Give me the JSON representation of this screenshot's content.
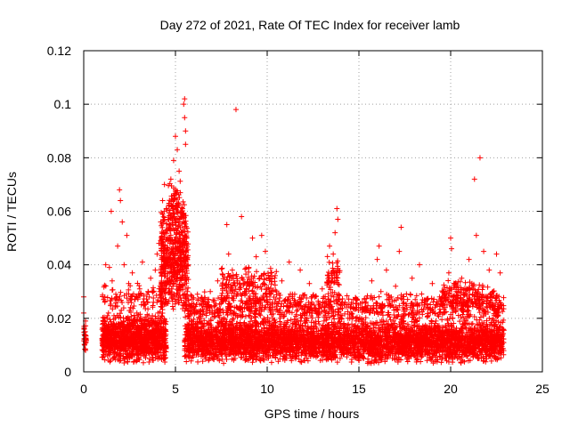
{
  "chart_data": {
    "type": "scatter",
    "title": "Day 272 of 2021, Rate Of TEC Index for receiver lamb",
    "xlabel": "GPS time / hours",
    "ylabel": "ROTI / TECUs",
    "xlim": [
      0,
      25
    ],
    "ylim": [
      0,
      0.12
    ],
    "xticks": [
      0,
      5,
      10,
      15,
      20,
      25
    ],
    "xtick_labels": [
      "0",
      "5",
      "10",
      "15",
      "20",
      "25"
    ],
    "yticks": [
      0,
      0.02,
      0.04,
      0.06,
      0.08,
      0.1,
      0.12
    ],
    "ytick_labels": [
      "0",
      "0.02",
      "0.04",
      "0.06",
      "0.08",
      "0.1",
      "0.12"
    ],
    "grid": true,
    "marker": "+",
    "series": [
      {
        "name": "ROTI",
        "color": "#ff0000",
        "points": [
          [
            0.0,
            0.028
          ],
          [
            0.0,
            0.022
          ],
          [
            0.02,
            0.017
          ],
          [
            0.03,
            0.014
          ],
          [
            0.05,
            0.01
          ],
          [
            0.08,
            0.015
          ],
          [
            0.1,
            0.008
          ],
          [
            0.1,
            0.019
          ],
          [
            0.12,
            0.012
          ],
          [
            1.0,
            0.012
          ],
          [
            1.05,
            0.019
          ],
          [
            1.1,
            0.008
          ],
          [
            1.15,
            0.026
          ],
          [
            1.2,
            0.04
          ],
          [
            1.25,
            0.014
          ],
          [
            1.3,
            0.006
          ],
          [
            1.35,
            0.022
          ],
          [
            1.4,
            0.039
          ],
          [
            1.45,
            0.017
          ],
          [
            1.5,
            0.06
          ],
          [
            1.5,
            0.011
          ],
          [
            1.55,
            0.034
          ],
          [
            1.6,
            0.005
          ],
          [
            1.65,
            0.021
          ],
          [
            1.7,
            0.014
          ],
          [
            1.75,
            0.029
          ],
          [
            1.8,
            0.009
          ],
          [
            1.85,
            0.047
          ],
          [
            1.9,
            0.016
          ],
          [
            1.95,
            0.068
          ],
          [
            2.0,
            0.064
          ],
          [
            2.0,
            0.011
          ],
          [
            2.05,
            0.023
          ],
          [
            2.1,
            0.056
          ],
          [
            2.15,
            0.013
          ],
          [
            2.2,
            0.04
          ],
          [
            2.25,
            0.008
          ],
          [
            2.3,
            0.02
          ],
          [
            2.35,
            0.051
          ],
          [
            2.4,
            0.015
          ],
          [
            2.45,
            0.033
          ],
          [
            2.5,
            0.006
          ],
          [
            2.55,
            0.024
          ],
          [
            2.6,
            0.012
          ],
          [
            2.65,
            0.037
          ],
          [
            2.7,
            0.018
          ],
          [
            2.75,
            0.009
          ],
          [
            2.8,
            0.027
          ],
          [
            2.85,
            0.014
          ],
          [
            2.9,
            0.022
          ],
          [
            2.95,
            0.007
          ],
          [
            3.0,
            0.016
          ],
          [
            3.05,
            0.031
          ],
          [
            3.1,
            0.011
          ],
          [
            3.15,
            0.02
          ],
          [
            3.2,
            0.041
          ],
          [
            3.25,
            0.013
          ],
          [
            3.3,
            0.025
          ],
          [
            3.35,
            0.008
          ],
          [
            3.4,
            0.017
          ],
          [
            3.45,
            0.029
          ],
          [
            3.5,
            0.01
          ],
          [
            3.55,
            0.021
          ],
          [
            3.6,
            0.014
          ],
          [
            3.65,
            0.035
          ],
          [
            3.7,
            0.007
          ],
          [
            3.75,
            0.019
          ],
          [
            3.8,
            0.026
          ],
          [
            3.85,
            0.012
          ],
          [
            3.9,
            0.038
          ],
          [
            3.95,
            0.016
          ],
          [
            4.0,
            0.044
          ],
          [
            4.05,
            0.022
          ],
          [
            4.1,
            0.048
          ],
          [
            4.15,
            0.03
          ],
          [
            4.2,
            0.056
          ],
          [
            4.25,
            0.036
          ],
          [
            4.3,
            0.064
          ],
          [
            4.35,
            0.045
          ],
          [
            4.4,
            0.07
          ],
          [
            4.45,
            0.052
          ],
          [
            4.5,
            0.061
          ],
          [
            4.55,
            0.04
          ],
          [
            4.6,
            0.057
          ],
          [
            4.65,
            0.031
          ],
          [
            4.7,
            0.048
          ],
          [
            4.75,
            0.072
          ],
          [
            4.8,
            0.062
          ],
          [
            4.85,
            0.045
          ],
          [
            4.9,
            0.079
          ],
          [
            4.95,
            0.058
          ],
          [
            5.0,
            0.088
          ],
          [
            5.0,
            0.068
          ],
          [
            5.05,
            0.052
          ],
          [
            5.1,
            0.083
          ],
          [
            5.1,
            0.04
          ],
          [
            5.15,
            0.062
          ],
          [
            5.2,
            0.075
          ],
          [
            5.25,
            0.047
          ],
          [
            5.3,
            0.058
          ],
          [
            5.35,
            0.035
          ],
          [
            5.4,
            0.049
          ],
          [
            5.45,
            0.1
          ],
          [
            5.5,
            0.102
          ],
          [
            5.5,
            0.095
          ],
          [
            5.55,
            0.09
          ],
          [
            5.55,
            0.085
          ],
          [
            5.6,
            0.042
          ],
          [
            5.65,
            0.03
          ],
          [
            5.7,
            0.021
          ],
          [
            5.8,
            0.014
          ],
          [
            5.9,
            0.024
          ],
          [
            6.0,
            0.009
          ],
          [
            6.1,
            0.017
          ],
          [
            6.2,
            0.029
          ],
          [
            6.3,
            0.011
          ],
          [
            6.4,
            0.02
          ],
          [
            6.5,
            0.007
          ],
          [
            6.6,
            0.026
          ],
          [
            6.7,
            0.013
          ],
          [
            6.8,
            0.018
          ],
          [
            6.9,
            0.03
          ],
          [
            7.0,
            0.01
          ],
          [
            7.1,
            0.022
          ],
          [
            7.2,
            0.015
          ],
          [
            7.3,
            0.034
          ],
          [
            7.4,
            0.008
          ],
          [
            7.5,
            0.019
          ],
          [
            7.6,
            0.027
          ],
          [
            7.7,
            0.012
          ],
          [
            7.8,
            0.055
          ],
          [
            7.85,
            0.023
          ],
          [
            7.9,
            0.044
          ],
          [
            8.0,
            0.016
          ],
          [
            8.1,
            0.038
          ],
          [
            8.2,
            0.011
          ],
          [
            8.3,
            0.098
          ],
          [
            8.35,
            0.029
          ],
          [
            8.4,
            0.021
          ],
          [
            8.5,
            0.014
          ],
          [
            8.6,
            0.058
          ],
          [
            8.7,
            0.033
          ],
          [
            8.8,
            0.009
          ],
          [
            8.9,
            0.026
          ],
          [
            9.0,
            0.039
          ],
          [
            9.1,
            0.017
          ],
          [
            9.2,
            0.05
          ],
          [
            9.3,
            0.022
          ],
          [
            9.4,
            0.043
          ],
          [
            9.5,
            0.012
          ],
          [
            9.6,
            0.035
          ],
          [
            9.7,
            0.051
          ],
          [
            9.8,
            0.019
          ],
          [
            9.9,
            0.045
          ],
          [
            10.0,
            0.028
          ],
          [
            10.1,
            0.011
          ],
          [
            10.2,
            0.037
          ],
          [
            10.3,
            0.02
          ],
          [
            10.4,
            0.014
          ],
          [
            10.5,
            0.03
          ],
          [
            10.6,
            0.008
          ],
          [
            10.7,
            0.023
          ],
          [
            10.8,
            0.034
          ],
          [
            10.9,
            0.016
          ],
          [
            11.0,
            0.027
          ],
          [
            11.2,
            0.041
          ],
          [
            11.4,
            0.012
          ],
          [
            11.5,
            0.029
          ],
          [
            11.6,
            0.018
          ],
          [
            11.8,
            0.038
          ],
          [
            12.0,
            0.01
          ],
          [
            12.1,
            0.025
          ],
          [
            12.3,
            0.033
          ],
          [
            12.5,
            0.015
          ],
          [
            12.6,
            0.028
          ],
          [
            12.8,
            0.009
          ],
          [
            13.0,
            0.031
          ],
          [
            13.1,
            0.019
          ],
          [
            13.3,
            0.036
          ],
          [
            13.4,
            0.047
          ],
          [
            13.5,
            0.024
          ],
          [
            13.6,
            0.044
          ],
          [
            13.7,
            0.052
          ],
          [
            13.8,
            0.061
          ],
          [
            13.85,
            0.057
          ],
          [
            13.9,
            0.029
          ],
          [
            14.0,
            0.018
          ],
          [
            14.1,
            0.012
          ],
          [
            14.2,
            0.025
          ],
          [
            14.4,
            0.008
          ],
          [
            14.5,
            0.02
          ],
          [
            14.7,
            0.013
          ],
          [
            14.9,
            0.027
          ],
          [
            15.0,
            0.006
          ],
          [
            15.2,
            0.018
          ],
          [
            15.4,
            0.011
          ],
          [
            15.5,
            0.023
          ],
          [
            15.7,
            0.034
          ],
          [
            15.8,
            0.009
          ],
          [
            16.0,
            0.042
          ],
          [
            16.1,
            0.047
          ],
          [
            16.2,
            0.03
          ],
          [
            16.4,
            0.016
          ],
          [
            16.5,
            0.038
          ],
          [
            16.7,
            0.011
          ],
          [
            16.8,
            0.025
          ],
          [
            17.0,
            0.032
          ],
          [
            17.2,
            0.045
          ],
          [
            17.3,
            0.054
          ],
          [
            17.4,
            0.02
          ],
          [
            17.6,
            0.012
          ],
          [
            17.8,
            0.029
          ],
          [
            17.9,
            0.035
          ],
          [
            18.0,
            0.009
          ],
          [
            18.2,
            0.022
          ],
          [
            18.3,
            0.04
          ],
          [
            18.5,
            0.015
          ],
          [
            18.7,
            0.027
          ],
          [
            18.9,
            0.01
          ],
          [
            19.0,
            0.033
          ],
          [
            19.2,
            0.019
          ],
          [
            19.4,
            0.028
          ],
          [
            19.5,
            0.012
          ],
          [
            19.7,
            0.024
          ],
          [
            19.9,
            0.037
          ],
          [
            20.0,
            0.05
          ],
          [
            20.05,
            0.046
          ],
          [
            20.1,
            0.02
          ],
          [
            20.3,
            0.03
          ],
          [
            20.5,
            0.013
          ],
          [
            20.6,
            0.035
          ],
          [
            20.8,
            0.025
          ],
          [
            21.0,
            0.042
          ],
          [
            21.2,
            0.018
          ],
          [
            21.3,
            0.072
          ],
          [
            21.4,
            0.051
          ],
          [
            21.5,
            0.029
          ],
          [
            21.6,
            0.08
          ],
          [
            21.7,
            0.011
          ],
          [
            21.8,
            0.045
          ],
          [
            22.0,
            0.024
          ],
          [
            22.1,
            0.038
          ],
          [
            22.2,
            0.015
          ],
          [
            22.3,
            0.03
          ],
          [
            22.4,
            0.009
          ],
          [
            22.5,
            0.044
          ],
          [
            22.6,
            0.021
          ],
          [
            22.7,
            0.037
          ],
          [
            22.8,
            0.014
          ]
        ]
      }
    ],
    "density_bands": [
      {
        "x0": 0.0,
        "x1": 0.15,
        "y_low": 0.007,
        "y_high": 0.018,
        "count": 22
      },
      {
        "x0": 1.0,
        "x1": 4.5,
        "y_low": 0.003,
        "y_high": 0.022,
        "count": 1100
      },
      {
        "x0": 1.0,
        "x1": 4.5,
        "y_low": 0.02,
        "y_high": 0.034,
        "count": 110
      },
      {
        "x0": 4.2,
        "x1": 5.7,
        "y_low": 0.02,
        "y_high": 0.062,
        "count": 520
      },
      {
        "x0": 4.6,
        "x1": 5.5,
        "y_low": 0.05,
        "y_high": 0.072,
        "count": 90
      },
      {
        "x0": 5.5,
        "x1": 22.9,
        "y_low": 0.003,
        "y_high": 0.02,
        "count": 4200
      },
      {
        "x0": 5.5,
        "x1": 22.9,
        "y_low": 0.018,
        "y_high": 0.03,
        "count": 900
      },
      {
        "x0": 7.5,
        "x1": 10.5,
        "y_low": 0.025,
        "y_high": 0.04,
        "count": 160
      },
      {
        "x0": 13.2,
        "x1": 14.0,
        "y_low": 0.025,
        "y_high": 0.045,
        "count": 60
      },
      {
        "x0": 19.5,
        "x1": 22.5,
        "y_low": 0.022,
        "y_high": 0.035,
        "count": 160
      }
    ]
  }
}
